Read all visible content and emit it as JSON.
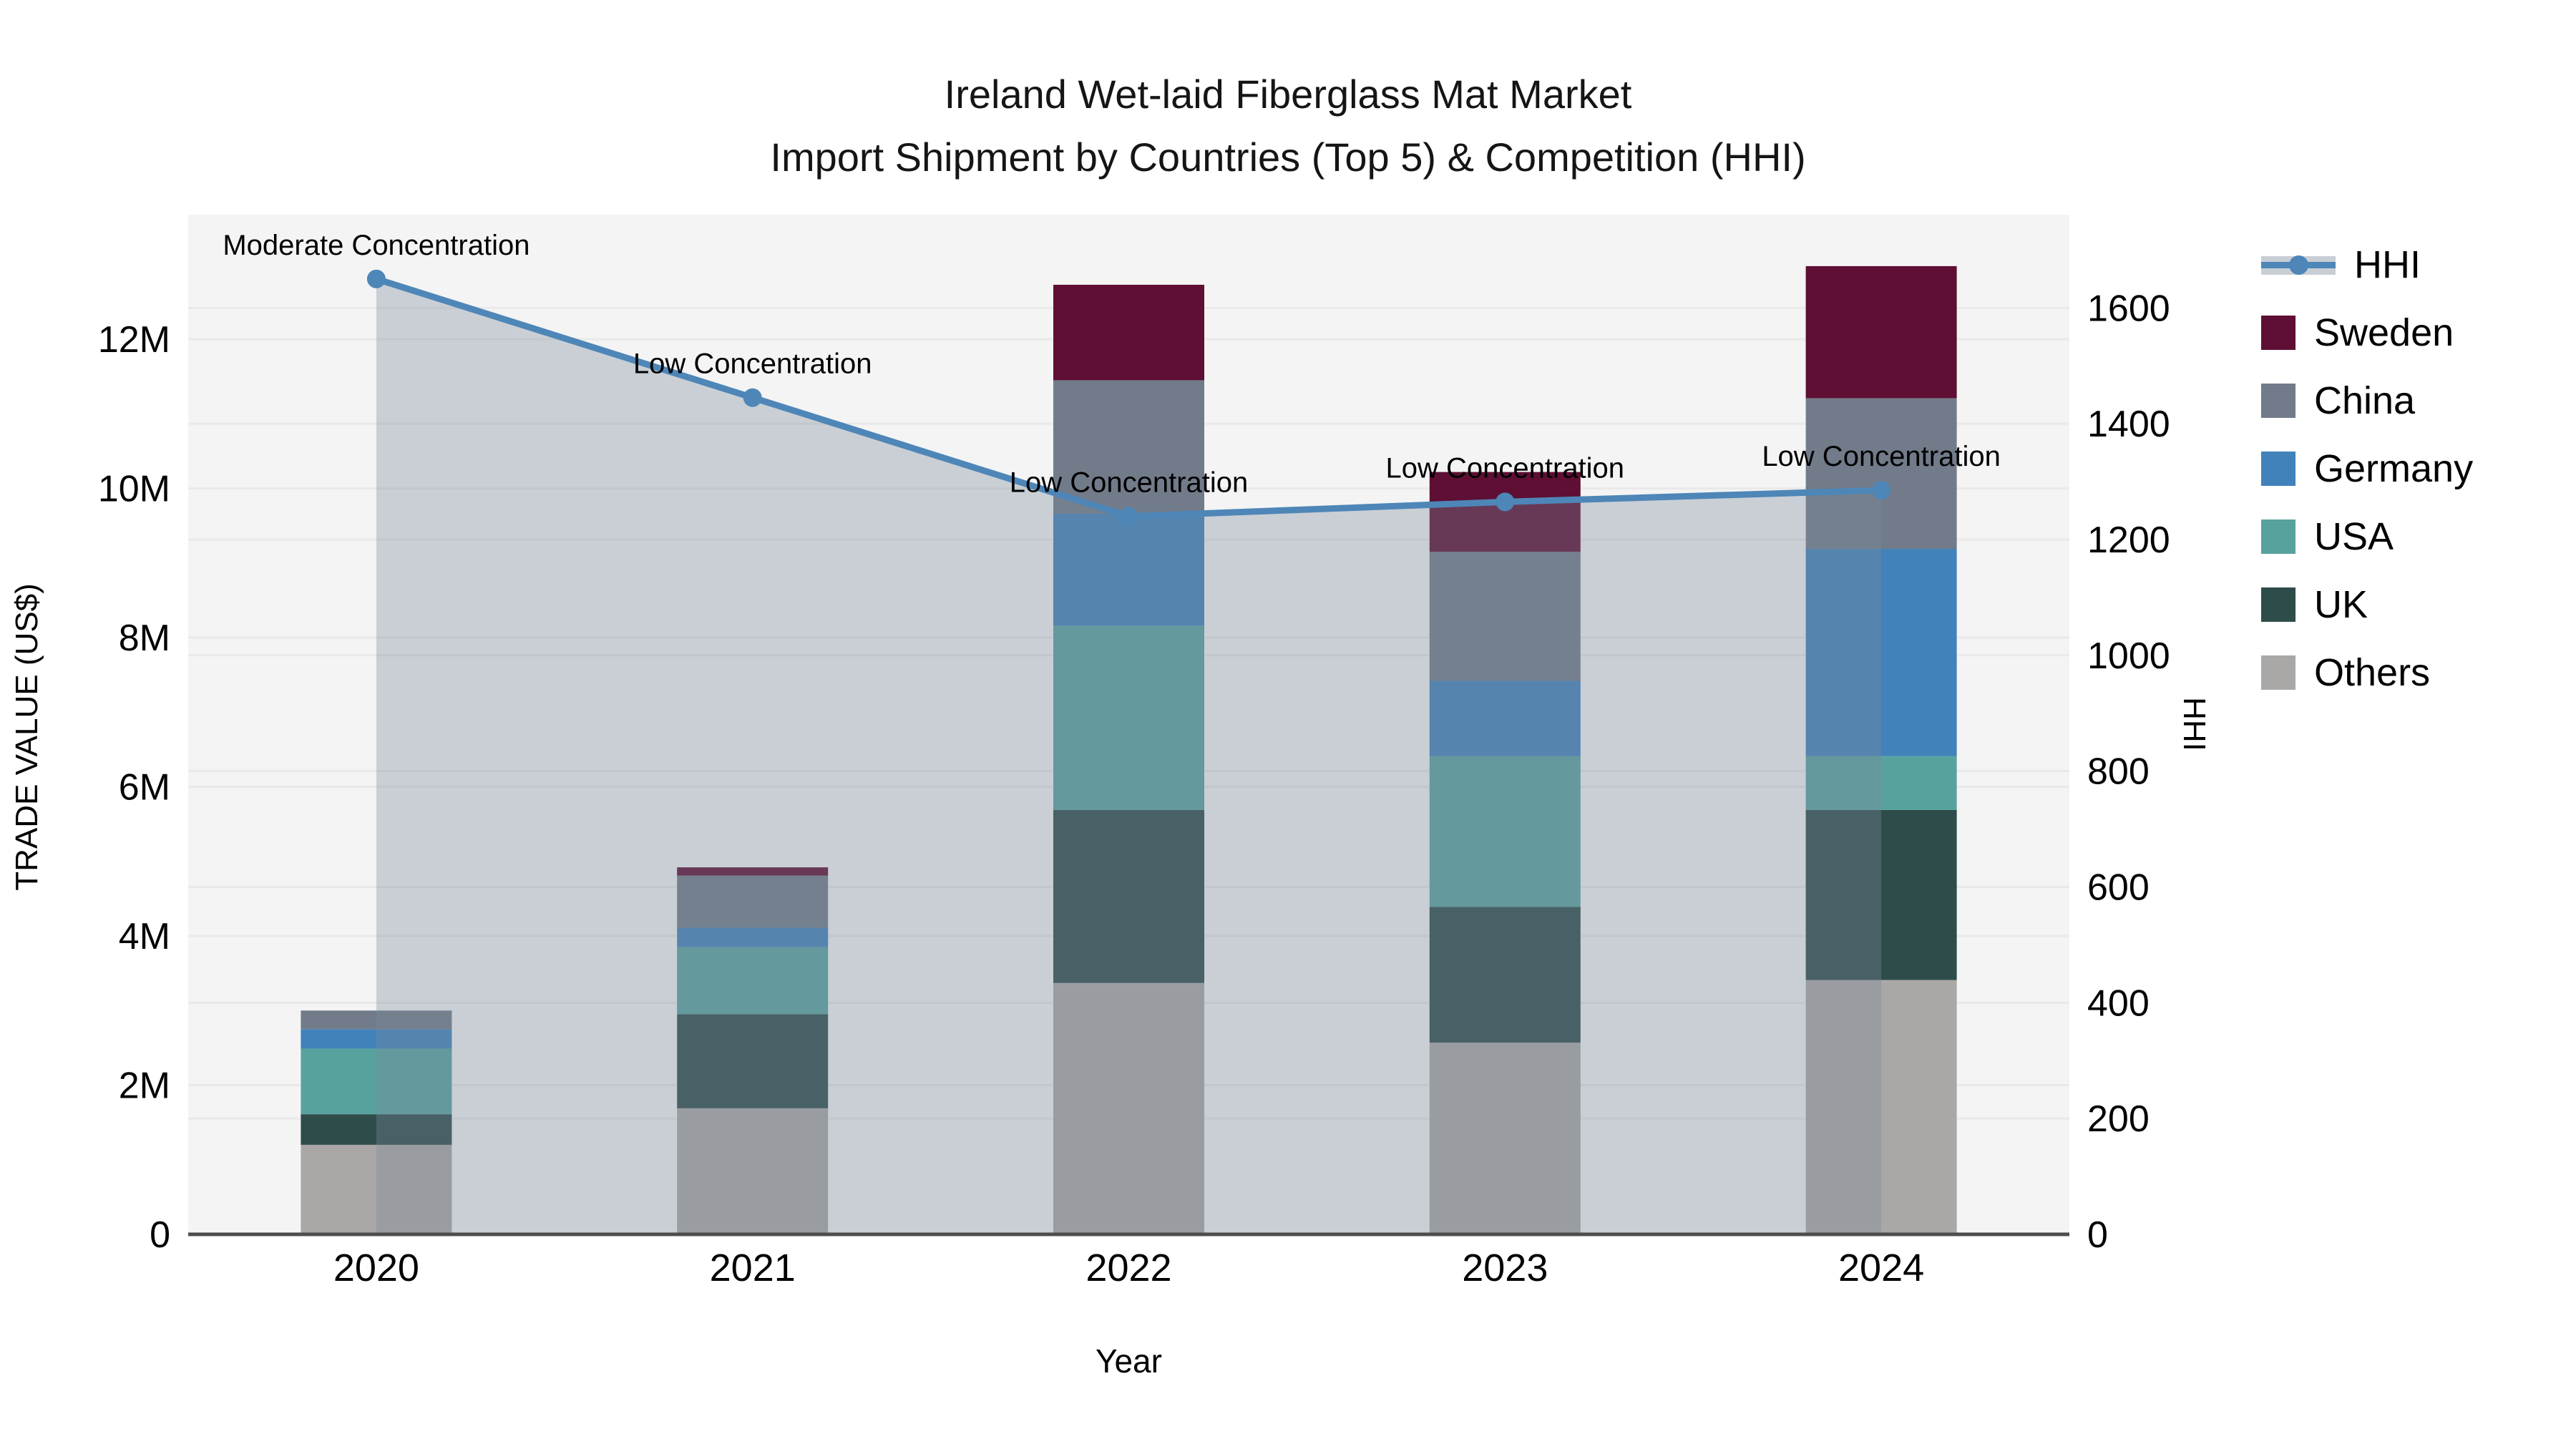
{
  "title": {
    "line1": "Ireland Wet-laid Fiberglass Mat Market",
    "line2": "Import Shipment by Countries (Top 5) & Competition (HHI)"
  },
  "legend": {
    "items": [
      {
        "label": "HHI",
        "type": "line",
        "color": "#4e86b8"
      },
      {
        "label": "Sweden",
        "type": "swatch",
        "color": "#5e0f33"
      },
      {
        "label": "China",
        "type": "swatch",
        "color": "#727b89"
      },
      {
        "label": "Germany",
        "type": "swatch",
        "color": "#4182bb"
      },
      {
        "label": "USA",
        "type": "swatch",
        "color": "#58a29e"
      },
      {
        "label": "UK",
        "type": "swatch",
        "color": "#2d4c4a"
      },
      {
        "label": "Others",
        "type": "swatch",
        "color": "#a9a8a7"
      }
    ]
  },
  "chart_data": {
    "type": "bar+line",
    "title": "Ireland Wet-laid Fiberglass Mat Market — Import Shipment by Countries (Top 5) & Competition (HHI)",
    "categories": [
      "2020",
      "2021",
      "2022",
      "2023",
      "2024"
    ],
    "bar_value_unit": "million US$",
    "series": [
      {
        "name": "Others",
        "color": "#a9a8a7",
        "values": [
          1.2,
          1.69,
          3.37,
          2.57,
          3.41
        ]
      },
      {
        "name": "UK",
        "color": "#2d4c4a",
        "values": [
          0.41,
          1.26,
          2.32,
          1.82,
          2.28
        ]
      },
      {
        "name": "USA",
        "color": "#58a29e",
        "values": [
          0.88,
          0.9,
          2.47,
          2.02,
          0.72
        ]
      },
      {
        "name": "Germany",
        "color": "#4182bb",
        "values": [
          0.26,
          0.26,
          1.5,
          1.01,
          2.78
        ]
      },
      {
        "name": "China",
        "color": "#727b89",
        "values": [
          0.25,
          0.7,
          1.79,
          1.73,
          2.02
        ]
      },
      {
        "name": "Sweden",
        "color": "#5e0f33",
        "values": [
          0.0,
          0.11,
          1.28,
          1.07,
          1.77
        ]
      }
    ],
    "bar_totals": [
      3.0,
      4.92,
      12.73,
      10.22,
      12.98
    ],
    "line_series": {
      "name": "HHI",
      "color": "#4e86b8",
      "area_color": "rgba(122,138,155,0.35)",
      "values": [
        1650,
        1445,
        1240,
        1265,
        1285
      ]
    },
    "annotations": [
      {
        "category": "2020",
        "text": "Moderate Concentration"
      },
      {
        "category": "2021",
        "text": "Low Concentration"
      },
      {
        "category": "2022",
        "text": "Low Concentration"
      },
      {
        "category": "2023",
        "text": "Low Concentration"
      },
      {
        "category": "2024",
        "text": "Low Concentration"
      }
    ],
    "left_axis": {
      "label": "TRADE VALUE (US$)",
      "ticks": [
        "0",
        "2M",
        "4M",
        "6M",
        "8M",
        "10M",
        "12M"
      ],
      "tick_values": [
        0,
        2,
        4,
        6,
        8,
        10,
        12
      ],
      "max": 13.67
    },
    "right_axis": {
      "label": "HHI",
      "ticks": [
        "0",
        "200",
        "400",
        "600",
        "800",
        "1000",
        "1200",
        "1400",
        "1600"
      ],
      "tick_values": [
        0,
        200,
        400,
        600,
        800,
        1000,
        1200,
        1400,
        1600
      ],
      "max": 1761
    },
    "x_axis": {
      "label": "Year"
    },
    "plot_background": "#f4f4f4",
    "grid": true,
    "legend_position": "right"
  }
}
